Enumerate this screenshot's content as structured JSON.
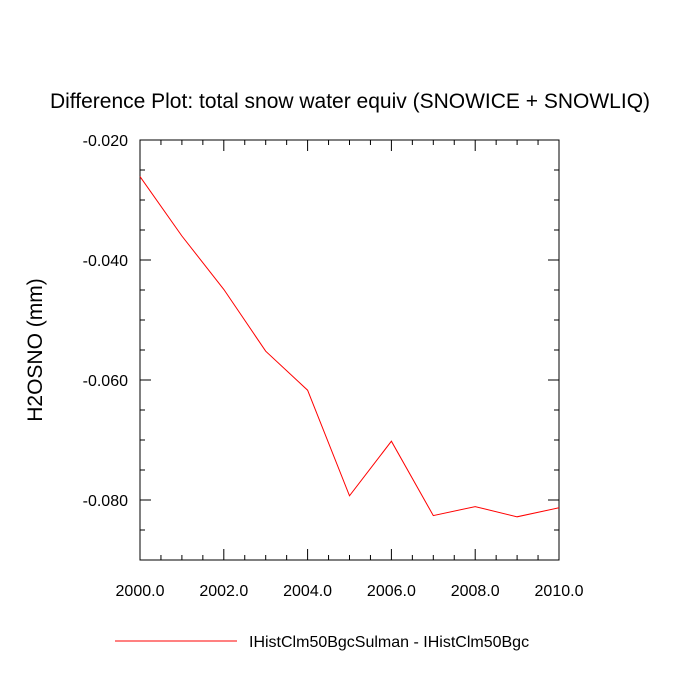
{
  "chart_data": {
    "type": "line",
    "title": "Difference Plot: total snow water equiv (SNOWICE + SNOWLIQ)",
    "xlabel": "",
    "ylabel": "H2OSNO  (mm)",
    "xlim": [
      2000.0,
      2010.0
    ],
    "ylim": [
      -0.09,
      -0.02
    ],
    "x_ticks": [
      2000.0,
      2002.0,
      2004.0,
      2006.0,
      2008.0,
      2010.0
    ],
    "x_tick_labels": [
      "2000.0",
      "2002.0",
      "2004.0",
      "2006.0",
      "2008.0",
      "2010.0"
    ],
    "y_ticks": [
      -0.02,
      -0.04,
      -0.06,
      -0.08
    ],
    "y_tick_labels": [
      "-0.020",
      "-0.040",
      "-0.060",
      "-0.080"
    ],
    "x": [
      2000,
      2001,
      2002,
      2003,
      2004,
      2005,
      2006,
      2007,
      2008,
      2009,
      2010
    ],
    "series": [
      {
        "name": "IHistClm50BgcSulman - IHistClm50Bgc",
        "color": "#ff0000",
        "values": [
          -0.0261,
          -0.036,
          -0.0449,
          -0.0552,
          -0.0617,
          -0.0793,
          -0.0702,
          -0.0826,
          -0.0811,
          -0.0828,
          -0.0813
        ]
      }
    ],
    "grid": false,
    "legend_position": "bottom"
  }
}
